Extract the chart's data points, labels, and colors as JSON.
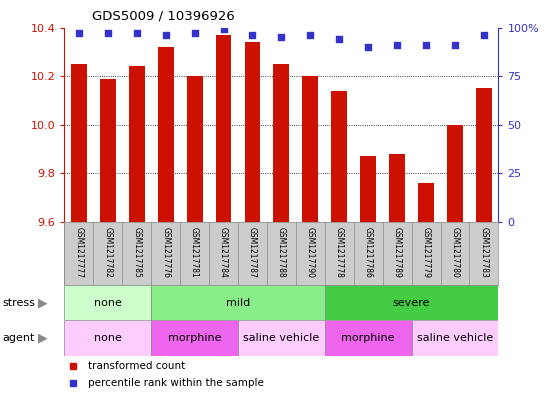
{
  "title": "GDS5009 / 10396926",
  "samples": [
    "GSM1217777",
    "GSM1217782",
    "GSM1217785",
    "GSM1217776",
    "GSM1217781",
    "GSM1217784",
    "GSM1217787",
    "GSM1217788",
    "GSM1217790",
    "GSM1217778",
    "GSM1217786",
    "GSM1217789",
    "GSM1217779",
    "GSM1217780",
    "GSM1217783"
  ],
  "bar_values": [
    10.25,
    10.19,
    10.24,
    10.32,
    10.2,
    10.37,
    10.34,
    10.25,
    10.2,
    10.14,
    9.87,
    9.88,
    9.76,
    10.0,
    10.15
  ],
  "percentile_values": [
    97,
    97,
    97,
    96,
    97,
    99,
    96,
    95,
    96,
    94,
    90,
    91,
    91,
    91,
    96
  ],
  "bar_color": "#cc1100",
  "percentile_color": "#3333cc",
  "ylim_left": [
    9.6,
    10.4
  ],
  "ylim_right": [
    0,
    100
  ],
  "yticks_left": [
    9.6,
    9.8,
    10.0,
    10.2,
    10.4
  ],
  "yticks_right": [
    0,
    25,
    50,
    75,
    100
  ],
  "ytick_labels_right": [
    "0",
    "25",
    "50",
    "75",
    "100%"
  ],
  "stress_groups": [
    {
      "label": "none",
      "start": 0,
      "end": 3,
      "color": "#ccffcc"
    },
    {
      "label": "mild",
      "start": 3,
      "end": 9,
      "color": "#88ee88"
    },
    {
      "label": "severe",
      "start": 9,
      "end": 15,
      "color": "#44cc44"
    }
  ],
  "agent_groups": [
    {
      "label": "none",
      "start": 0,
      "end": 3,
      "color": "#ffccff"
    },
    {
      "label": "morphine",
      "start": 3,
      "end": 6,
      "color": "#ee66ee"
    },
    {
      "label": "saline vehicle",
      "start": 6,
      "end": 9,
      "color": "#ffccff"
    },
    {
      "label": "morphine",
      "start": 9,
      "end": 12,
      "color": "#ee66ee"
    },
    {
      "label": "saline vehicle",
      "start": 12,
      "end": 15,
      "color": "#ffccff"
    }
  ],
  "bar_bottom": 9.6,
  "xticklabel_area_color": "#cccccc",
  "xticklabel_border_color": "#888888"
}
